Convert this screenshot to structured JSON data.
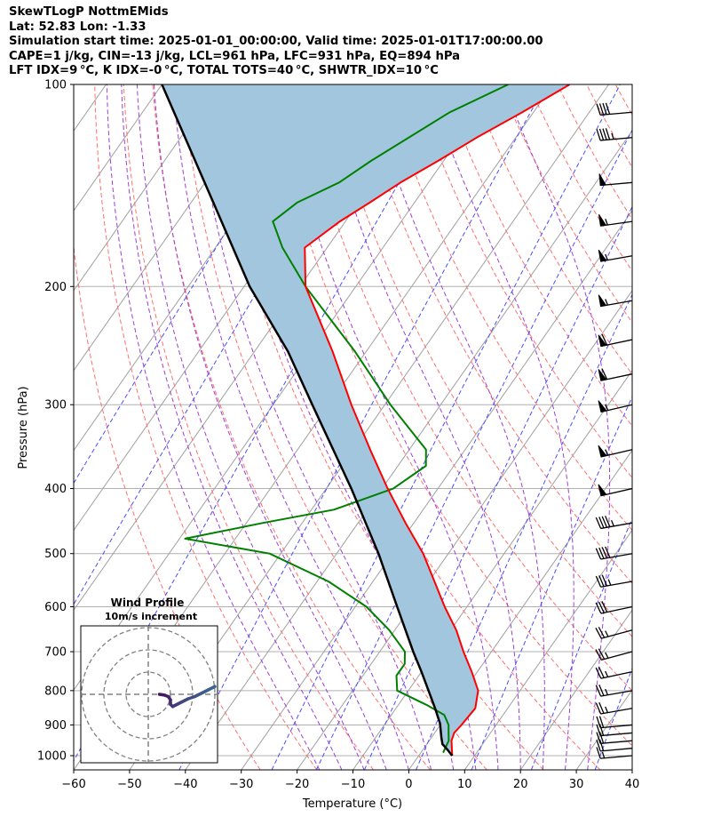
{
  "header": {
    "title": "SkewTLogP NottmEMids",
    "location": "Lat: 52.83   Lon: -1.33",
    "times": "Simulation start time: 2025-01-01_00:00:00, Valid time: 2025-01-01T17:00:00.00",
    "indices1": "CAPE=1 j/kg, CIN=-13 j/kg, LCL=961 hPa, LFC=931 hPa, EQ=894 hPa",
    "indices2": "LFT IDX=9 °C, K IDX=-0 °C, TOTAL TOTS=40 °C, SHWTR_IDX=10 °C"
  },
  "chart_data": {
    "type": "line",
    "title": "SkewTLogP NottmEMids",
    "xlabel": "Temperature (°C)",
    "ylabel": "Pressure (hPa)",
    "xlim": [
      -60,
      40
    ],
    "ylim": [
      1050,
      100
    ],
    "y_scale": "log",
    "x_ticks": [
      -60,
      -50,
      -40,
      -30,
      -20,
      -10,
      0,
      10,
      20,
      30,
      40
    ],
    "x_tick_labels": [
      "−60",
      "−50",
      "−40",
      "−30",
      "−20",
      "−10",
      "0",
      "10",
      "20",
      "30",
      "40"
    ],
    "y_ticks": [
      1000,
      900,
      800,
      700,
      600,
      500,
      400,
      300,
      200,
      100
    ],
    "grid": true,
    "series": [
      {
        "role": "temperature",
        "color": "#ff0000",
        "p": [
          1000,
          975,
          950,
          925,
          900,
          850,
          800,
          750,
          700,
          650,
          600,
          550,
          500,
          450,
          400,
          350,
          300,
          250,
          200,
          175,
          160,
          150,
          140,
          130,
          120,
          110,
          100
        ],
        "t": [
          6,
          5,
          4,
          3.5,
          3.8,
          4.2,
          2.5,
          -1,
          -5,
          -9,
          -14,
          -19,
          -24.5,
          -31.5,
          -39,
          -47,
          -56,
          -66,
          -79,
          -84,
          -81,
          -78,
          -75,
          -71,
          -67,
          -62,
          -57
        ]
      },
      {
        "role": "dewpoint",
        "color": "#008000",
        "p": [
          990,
          975,
          950,
          925,
          900,
          870,
          840,
          800,
          760,
          730,
          700,
          650,
          600,
          550,
          500,
          475,
          450,
          430,
          400,
          370,
          350,
          300,
          250,
          200,
          175,
          160,
          150,
          140,
          130,
          110,
          100
        ],
        "t": [
          4,
          3.8,
          3.5,
          2.5,
          1.5,
          -0.5,
          -5,
          -12,
          -14,
          -14,
          -15.5,
          -21,
          -28,
          -38,
          -52,
          -69,
          -57,
          -46,
          -38,
          -35,
          -37,
          -49,
          -62,
          -79,
          -88,
          -93,
          -91,
          -86,
          -83,
          -75,
          -68
        ]
      },
      {
        "role": "parcel",
        "color": "#000000",
        "p": [
          1000,
          975,
          961,
          940,
          931,
          920,
          900,
          894,
          850,
          800,
          750,
          700,
          600,
          500,
          400,
          300,
          250,
          200,
          150,
          100
        ],
        "t": [
          6,
          4,
          2.8,
          1.8,
          1.4,
          0.9,
          0,
          -0.3,
          -3,
          -6.4,
          -10,
          -14,
          -22.5,
          -32.5,
          -45.5,
          -63,
          -74,
          -89,
          -106,
          -130
        ]
      }
    ],
    "reference_lines": [
      "dry adiabats (red dashed)",
      "moist adiabats (purple dashed)",
      "mixing ratio (blue dashed)",
      "isotherms (grey)"
    ],
    "wind_barbs": {
      "p": [
        1000,
        975,
        950,
        925,
        900,
        850,
        800,
        750,
        700,
        650,
        600,
        550,
        500,
        450,
        400,
        350,
        300,
        270,
        240,
        210,
        180,
        160,
        140,
        120,
        110
      ],
      "dir_deg": [
        265,
        265,
        265,
        265,
        265,
        260,
        260,
        258,
        255,
        255,
        258,
        260,
        260,
        260,
        257,
        257,
        257,
        258,
        258,
        260,
        260,
        262,
        265,
        265,
        265
      ],
      "speed_kt": [
        15,
        20,
        20,
        20,
        20,
        25,
        25,
        25,
        25,
        25,
        30,
        35,
        40,
        45,
        50,
        55,
        55,
        60,
        60,
        55,
        55,
        55,
        50,
        45,
        40
      ]
    },
    "hodograph": {
      "title": "Wind Profile",
      "subtitle": "10m/s increment",
      "rings_ms": [
        10,
        20,
        30
      ],
      "u_ms": [
        5,
        7,
        9,
        10,
        10,
        11,
        13,
        15,
        18,
        21,
        24,
        27,
        30
      ],
      "v_ms": [
        0,
        -0.3,
        -1,
        -2.5,
        -4.5,
        -5.5,
        -4.5,
        -3.5,
        -2,
        -1,
        0.5,
        2,
        3.5
      ]
    }
  }
}
